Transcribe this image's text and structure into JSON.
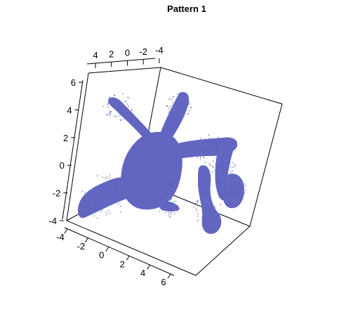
{
  "chart_data": {
    "type": "scatter",
    "title": "Pattern 1",
    "point_color": "#6366c0",
    "axes": {
      "top": {
        "ticks": [
          "4",
          "2",
          "0",
          "-2",
          "-4"
        ]
      },
      "left": {
        "ticks": [
          "6",
          "4",
          "2",
          "0",
          "-2",
          "-4"
        ]
      },
      "bottom": {
        "ticks": [
          "-4",
          "-2",
          "0",
          "2",
          "4",
          "6"
        ]
      }
    },
    "grid": false,
    "legend": "none"
  }
}
